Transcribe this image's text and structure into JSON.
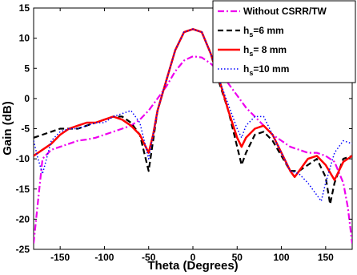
{
  "chart_data": {
    "type": "line",
    "xlabel": "Theta (Degrees)",
    "ylabel": "Gain (dB)",
    "xlim": [
      -180,
      180
    ],
    "ylim": [
      -25,
      15
    ],
    "xticks": [
      -150,
      -100,
      -50,
      0,
      50,
      100,
      150
    ],
    "yticks": [
      -25,
      -20,
      -15,
      -10,
      -5,
      0,
      5,
      10,
      15
    ],
    "grid": false,
    "legend_position": "top-right",
    "series": [
      {
        "name": "Without CSRR/TW",
        "label_main": "Without CSRR/TW",
        "label_sub": "",
        "label_tail": "",
        "color": "#ee00ee",
        "style": "dashdot",
        "x": [
          -180,
          -175,
          -170,
          -160,
          -150,
          -140,
          -130,
          -120,
          -110,
          -100,
          -90,
          -80,
          -70,
          -60,
          -50,
          -40,
          -30,
          -20,
          -10,
          0,
          10,
          20,
          30,
          40,
          50,
          60,
          70,
          80,
          90,
          100,
          110,
          120,
          130,
          140,
          150,
          160,
          170,
          175,
          180
        ],
        "y": [
          -24,
          -17,
          -10,
          -8.5,
          -8,
          -7.5,
          -7,
          -6.8,
          -6.5,
          -6,
          -5.5,
          -5,
          -4.5,
          -3.5,
          -2,
          0,
          2,
          4.5,
          6.3,
          7,
          6.8,
          5.8,
          4.5,
          2.5,
          0.5,
          -1.5,
          -3,
          -4.5,
          -6,
          -7,
          -8,
          -8.5,
          -9,
          -9,
          -9.5,
          -10.5,
          -14,
          -18,
          -24
        ]
      },
      {
        "name": "hs=6 mm",
        "label_main": "h",
        "label_sub": "s",
        "label_tail": "=6 mm",
        "color": "#000000",
        "style": "dashed",
        "x": [
          -180,
          -170,
          -160,
          -150,
          -140,
          -130,
          -120,
          -110,
          -100,
          -90,
          -80,
          -70,
          -60,
          -55,
          -50,
          -45,
          -40,
          -30,
          -20,
          -10,
          0,
          10,
          20,
          30,
          40,
          50,
          55,
          60,
          70,
          80,
          90,
          100,
          110,
          120,
          130,
          140,
          150,
          155,
          160,
          170,
          180
        ],
        "y": [
          -6.5,
          -6,
          -5.5,
          -5,
          -5,
          -5,
          -4.5,
          -4,
          -3.5,
          -3,
          -3,
          -4,
          -6,
          -9,
          -12,
          -7,
          -2,
          3,
          8,
          11,
          11.5,
          11,
          7.5,
          2.5,
          -2,
          -8,
          -11,
          -9,
          -6,
          -5.5,
          -7,
          -9.5,
          -12,
          -12,
          -11,
          -10,
          -13,
          -17.5,
          -14,
          -10,
          -9.5
        ]
      },
      {
        "name": "hs= 8 mm",
        "label_main": "h",
        "label_sub": "s",
        "label_tail": "= 8 mm",
        "color": "#ff0000",
        "style": "solid",
        "x": [
          -180,
          -170,
          -160,
          -150,
          -140,
          -130,
          -120,
          -110,
          -100,
          -90,
          -80,
          -70,
          -60,
          -55,
          -50,
          -45,
          -40,
          -30,
          -20,
          -10,
          0,
          10,
          20,
          30,
          40,
          50,
          55,
          60,
          70,
          80,
          90,
          100,
          110,
          115,
          120,
          130,
          140,
          150,
          160,
          170,
          180
        ],
        "y": [
          -9.5,
          -8.5,
          -7.5,
          -6,
          -5,
          -4.5,
          -4,
          -4,
          -3.5,
          -3,
          -3.5,
          -4.5,
          -6,
          -7.5,
          -9,
          -6,
          -2,
          3,
          8,
          11,
          11.5,
          11,
          7.5,
          3,
          -2,
          -6.5,
          -8,
          -6.5,
          -5,
          -4.5,
          -6,
          -9,
          -12,
          -13,
          -12,
          -10,
          -9.5,
          -11,
          -13.5,
          -10.5,
          -9.5
        ]
      },
      {
        "name": "hs=10 mm",
        "label_main": "h",
        "label_sub": "s",
        "label_tail": "=10 mm",
        "color": "#0000ff",
        "style": "dotted",
        "x": [
          -180,
          -175,
          -170,
          -160,
          -150,
          -140,
          -130,
          -120,
          -110,
          -100,
          -90,
          -80,
          -70,
          -60,
          -55,
          -50,
          -45,
          -40,
          -30,
          -20,
          -10,
          0,
          10,
          20,
          30,
          40,
          50,
          55,
          60,
          70,
          80,
          90,
          100,
          110,
          120,
          130,
          140,
          145,
          150,
          160,
          170,
          180
        ],
        "y": [
          -7,
          -10,
          -12.5,
          -7,
          -5.5,
          -5,
          -5,
          -4.5,
          -4,
          -4,
          -3,
          -2.5,
          -2,
          -4,
          -7,
          -10,
          -6,
          -2,
          3,
          8,
          11,
          11.5,
          11,
          7.5,
          3,
          -1,
          -5,
          -6.5,
          -4.5,
          -3,
          -3,
          -6,
          -9,
          -12,
          -12.5,
          -14,
          -16,
          -17,
          -14,
          -9,
          -7,
          -7.5
        ]
      }
    ]
  }
}
